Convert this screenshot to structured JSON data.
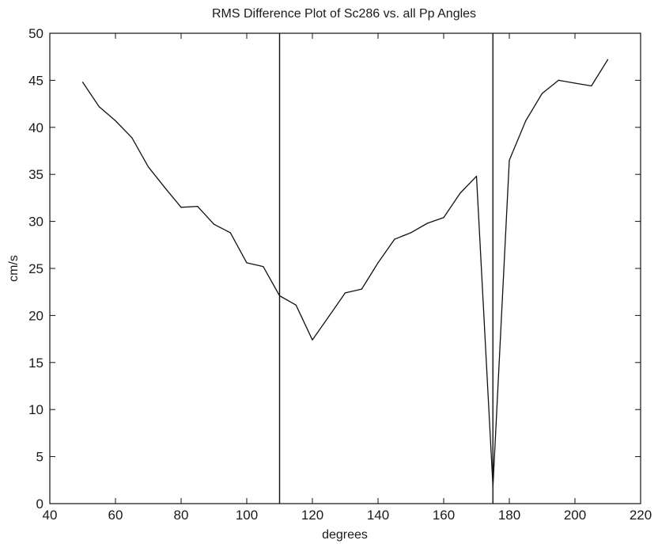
{
  "chart_data": {
    "type": "line",
    "title": "RMS Difference Plot of Sc286 vs. all Pp Angles",
    "xlabel": "degrees",
    "ylabel": "cm/s",
    "xlim": [
      40,
      220
    ],
    "ylim": [
      0,
      50
    ],
    "xticks": [
      40,
      60,
      80,
      100,
      120,
      140,
      160,
      180,
      200,
      220
    ],
    "yticks": [
      0,
      5,
      10,
      15,
      20,
      25,
      30,
      35,
      40,
      45,
      50
    ],
    "grid": false,
    "series": [
      {
        "x": [
          50,
          55,
          60,
          65,
          70,
          75,
          80,
          85,
          90,
          95,
          100,
          105,
          110,
          115,
          120,
          125,
          130,
          135,
          140,
          145,
          150,
          155,
          160,
          165,
          170,
          175,
          180,
          185,
          190,
          195,
          200,
          205,
          210
        ],
        "values": [
          44.8,
          42.2,
          40.7,
          38.9,
          35.8,
          33.6,
          31.5,
          31.6,
          29.7,
          28.8,
          25.6,
          25.2,
          22.1,
          21.1,
          17.4,
          19.9,
          22.4,
          22.8,
          25.6,
          28.1,
          28.8,
          29.8,
          30.4,
          33.0,
          34.8,
          1.8,
          36.5,
          40.7,
          43.6,
          45.0,
          44.7,
          44.4,
          47.2
        ]
      }
    ],
    "vertical_markers": [
      110,
      175
    ]
  }
}
